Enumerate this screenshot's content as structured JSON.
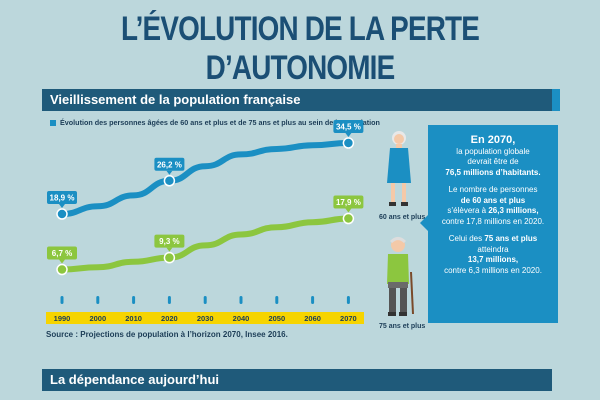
{
  "title": "L’ÉVOLUTION DE LA PERTE D’AUTONOMIE",
  "section1": "Vieillissement de la population française",
  "section2": "La dépendance aujourd’hui",
  "colors": {
    "navy": "#1f5a7a",
    "blue": "#1b8fc3",
    "green": "#8cc63f",
    "yellow": "#f6d400"
  },
  "chart_data": {
    "type": "line",
    "title": "Évolution des personnes âgées de 60 ans et plus et de 75 ans et plus au sein de la population",
    "x": [
      "1990",
      "2000",
      "2010",
      "2020",
      "2030",
      "2040",
      "2050",
      "2060",
      "2070"
    ],
    "series": [
      {
        "name": "60 ans et plus",
        "values": [
          18.9,
          20.6,
          23.0,
          26.2,
          29.4,
          32.0,
          33.2,
          34.0,
          34.5
        ],
        "labels": [
          "18,9 %",
          null,
          null,
          "26,2 %",
          null,
          null,
          null,
          null,
          "34,5 %"
        ]
      },
      {
        "name": "75 ans et plus",
        "values": [
          6.7,
          7.2,
          8.4,
          9.3,
          12.0,
          14.4,
          16.0,
          17.1,
          17.9
        ],
        "labels": [
          "6,7 %",
          null,
          null,
          "9,3 %",
          null,
          null,
          null,
          null,
          "17,9 %"
        ]
      }
    ],
    "ylim": [
      0,
      40
    ],
    "source": "Source : Projections de population à l’horizon 2070, Insee 2016."
  },
  "figures": {
    "older": "60 ans et plus",
    "oldest": "75 ans et plus"
  },
  "panel": {
    "head": "En 2070,",
    "l1": "la population globale",
    "l2": "devrait être de",
    "l3": "76,5 millions d’habitants.",
    "l4": "Le nombre de personnes",
    "l5": "de 60 ans et plus",
    "l6a": "s’élèvera à ",
    "l6b": "26,3 millions,",
    "l7": "contre 17,8 millions en 2020.",
    "l8a": "Celui des ",
    "l8b": "75 ans et plus",
    "l9": "atteindra",
    "l10": "13,7 millions,",
    "l11": "contre 6,3 millions en 2020."
  }
}
